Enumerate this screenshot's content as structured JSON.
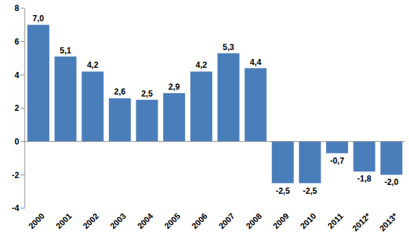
{
  "chart_data": {
    "type": "bar",
    "categories": [
      "2000",
      "2001",
      "2002",
      "2003",
      "2004",
      "2005",
      "2006",
      "2007",
      "2008",
      "2009",
      "2010",
      "2011",
      "2012*",
      "2013*"
    ],
    "values": [
      7.0,
      5.1,
      4.2,
      2.6,
      2.5,
      2.9,
      4.2,
      5.3,
      4.4,
      -2.5,
      -2.5,
      -0.7,
      -1.8,
      -2.0
    ],
    "value_labels": [
      "7,0",
      "5,1",
      "4,2",
      "2,6",
      "2,5",
      "2,9",
      "4,2",
      "5,3",
      "4,4",
      "-2,5",
      "-2,5",
      "-0,7",
      "-1,8",
      "-2,0"
    ],
    "color": "#4a7ebb",
    "ylim": [
      -4,
      8
    ],
    "yticks": [
      -4,
      -2,
      0,
      2,
      4,
      6,
      8
    ],
    "grid": false,
    "data_labels": true
  }
}
